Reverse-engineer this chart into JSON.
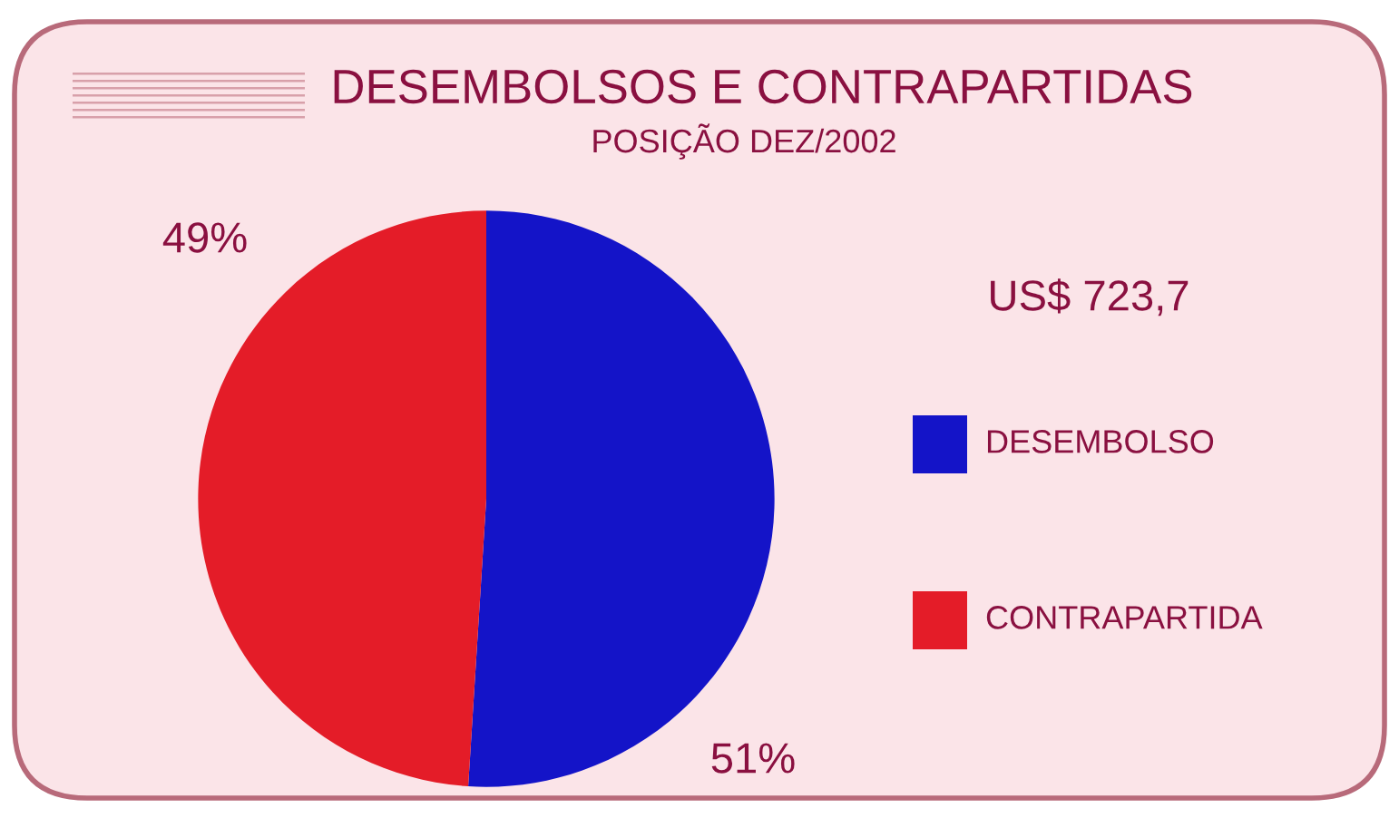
{
  "chart_data": {
    "type": "pie",
    "title": "DESEMBOLSOS E CONTRAPARTIDAS",
    "subtitle": "POSIÇÃO DEZ/2002",
    "categories": [
      "DESEMBOLSO",
      "CONTRAPARTIDA"
    ],
    "values": [
      51,
      49
    ],
    "value_labels": [
      "51%",
      "49%"
    ],
    "colors": [
      "#1414c8",
      "#e41c28"
    ],
    "annotations": [
      "US$ 723,7"
    ],
    "legend": "right"
  }
}
